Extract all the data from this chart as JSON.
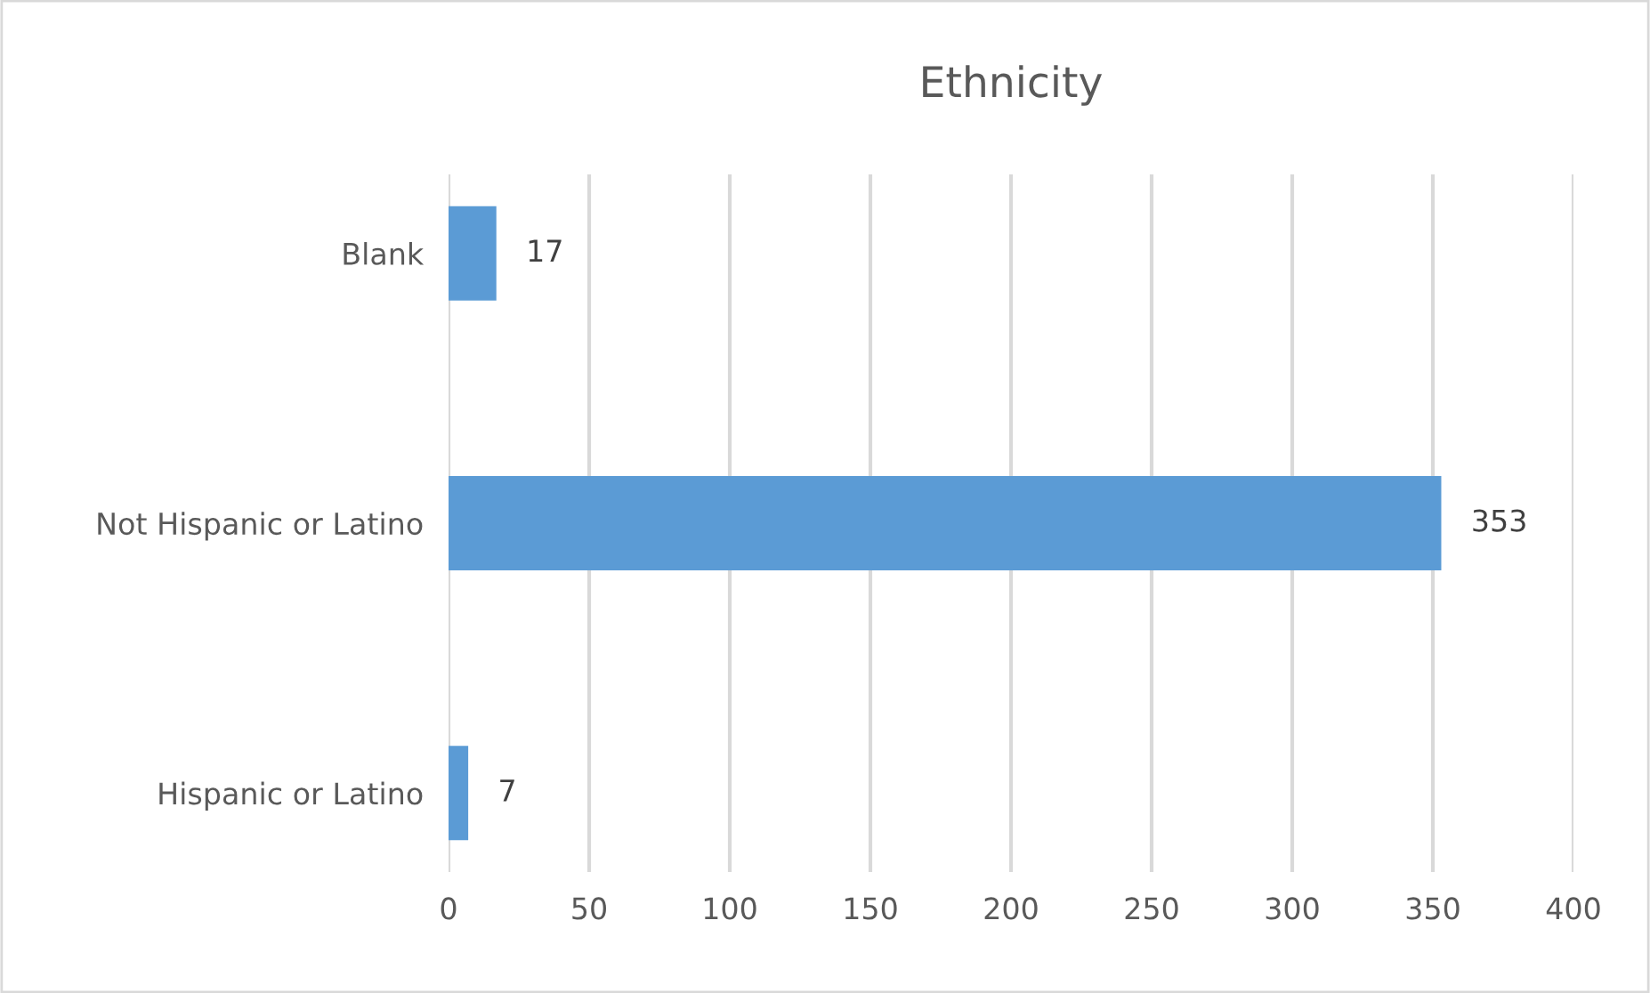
{
  "chart_data": {
    "type": "bar",
    "orientation": "horizontal",
    "title": "Ethnicity",
    "categories": [
      "Blank",
      "Not Hispanic or Latino",
      "Hispanic or Latino"
    ],
    "values": [
      17,
      353,
      7
    ],
    "color": "#5b9bd5",
    "xlim": [
      0,
      400
    ],
    "xticks": [
      0,
      50,
      100,
      150,
      200,
      250,
      300,
      350,
      400
    ],
    "grid": "x",
    "data_labels": true
  }
}
